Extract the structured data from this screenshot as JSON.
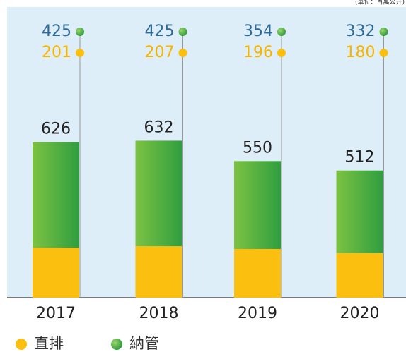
{
  "chart_data": {
    "type": "stacked_bar",
    "unit_note": "(單位：百萬公升)",
    "categories": [
      "2017",
      "2018",
      "2019",
      "2020"
    ],
    "series": [
      {
        "name": "直排",
        "color": "#fbbf0f",
        "values": [
          201,
          207,
          196,
          180
        ]
      },
      {
        "name": "納管",
        "color": "#3fa93f",
        "values": [
          425,
          425,
          354,
          332
        ]
      }
    ],
    "totals": [
      626,
      632,
      550,
      512
    ],
    "ylim": [
      0,
      1170
    ]
  }
}
